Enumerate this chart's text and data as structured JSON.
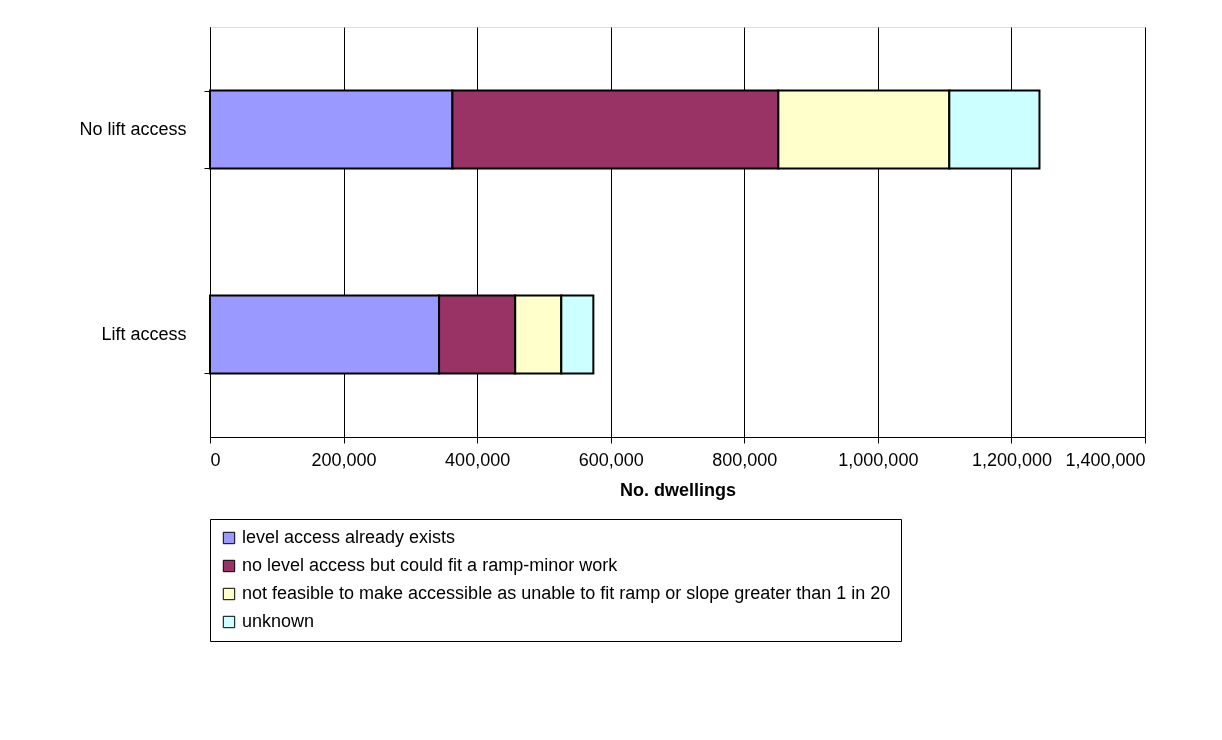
{
  "chart_data": {
    "type": "bar",
    "orientation": "horizontal",
    "stacked": true,
    "xlabel": "No. dwellings",
    "categories": [
      "No lift access",
      "Lift access"
    ],
    "series": [
      {
        "name": "level access already exists",
        "color": "#9999ff",
        "values": [
          363000,
          343000
        ]
      },
      {
        "name": "no level access but could fit a ramp-minor work",
        "color": "#993366",
        "values": [
          488000,
          114000
        ]
      },
      {
        "name": "not feasible to make accessible as unable to fit ramp or slope greater than 1 in 20",
        "color": "#ffffcc",
        "values": [
          256000,
          69000
        ]
      },
      {
        "name": "unknown",
        "color": "#ccffff",
        "values": [
          135000,
          48000
        ]
      }
    ],
    "xlim": [
      0,
      1400000
    ],
    "xticks": [
      0,
      {
        "value": 200000,
        "label": "200,000"
      },
      {
        "value": 400000,
        "label": "400,000"
      },
      {
        "value": 600000,
        "label": "600,000"
      },
      {
        "value": 800000,
        "label": "800,000"
      },
      {
        "value": 1000000,
        "label": "1,000,000"
      },
      {
        "value": 1200000,
        "label": "1,200,000"
      },
      {
        "value": 1400000,
        "label": "1,400,000"
      }
    ],
    "grid": "x",
    "legend": "bottom"
  }
}
